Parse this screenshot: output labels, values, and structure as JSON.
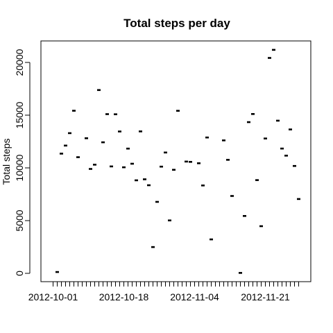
{
  "chart_data": {
    "type": "scatter",
    "title": "Total steps per day",
    "xlabel": "",
    "ylabel": "Total steps",
    "x_start": "2012-10-01",
    "x_tick_labels": [
      "2012-10-01",
      "2012-10-18",
      "2012-11-04",
      "2012-11-21"
    ],
    "y_ticks": [
      0,
      5000,
      10000,
      15000,
      20000
    ],
    "y_tick_labels": [
      "0",
      "5000",
      "10000",
      "15000",
      "20000"
    ],
    "ylim": [
      0,
      21500
    ],
    "grid": false,
    "legend": "none",
    "marker_color": "#000000",
    "series": [
      {
        "dates": [
          "2012-10-02",
          "2012-10-03",
          "2012-10-04",
          "2012-10-05",
          "2012-10-06",
          "2012-10-07",
          "2012-10-09",
          "2012-10-10",
          "2012-10-11",
          "2012-10-12",
          "2012-10-13",
          "2012-10-14",
          "2012-10-15",
          "2012-10-16",
          "2012-10-17",
          "2012-10-18",
          "2012-10-19",
          "2012-10-20",
          "2012-10-21",
          "2012-10-22",
          "2012-10-23",
          "2012-10-24",
          "2012-10-25",
          "2012-10-26",
          "2012-10-27",
          "2012-10-28",
          "2012-10-29",
          "2012-10-30",
          "2012-10-31",
          "2012-11-02",
          "2012-11-03",
          "2012-11-05",
          "2012-11-06",
          "2012-11-07",
          "2012-11-08",
          "2012-11-11",
          "2012-11-12",
          "2012-11-13",
          "2012-11-15",
          "2012-11-16",
          "2012-11-17",
          "2012-11-18",
          "2012-11-19",
          "2012-11-20",
          "2012-11-21",
          "2012-11-22",
          "2012-11-23",
          "2012-11-24",
          "2012-11-25",
          "2012-11-26",
          "2012-11-27",
          "2012-11-28",
          "2012-11-29"
        ],
        "values": [
          126,
          11352,
          12116,
          13294,
          15420,
          11015,
          12811,
          9900,
          10304,
          17382,
          12426,
          15098,
          10139,
          15084,
          13452,
          10056,
          11829,
          10395,
          8821,
          13460,
          8918,
          8355,
          2492,
          6778,
          10119,
          11458,
          5018,
          9819,
          15414,
          10600,
          10571,
          10439,
          8334,
          12883,
          3219,
          12608,
          10765,
          7336,
          41,
          5441,
          14339,
          15110,
          8841,
          4472,
          12787,
          20427,
          21194,
          14478,
          11834,
          11162,
          13646,
          10183,
          7047
        ]
      }
    ]
  }
}
